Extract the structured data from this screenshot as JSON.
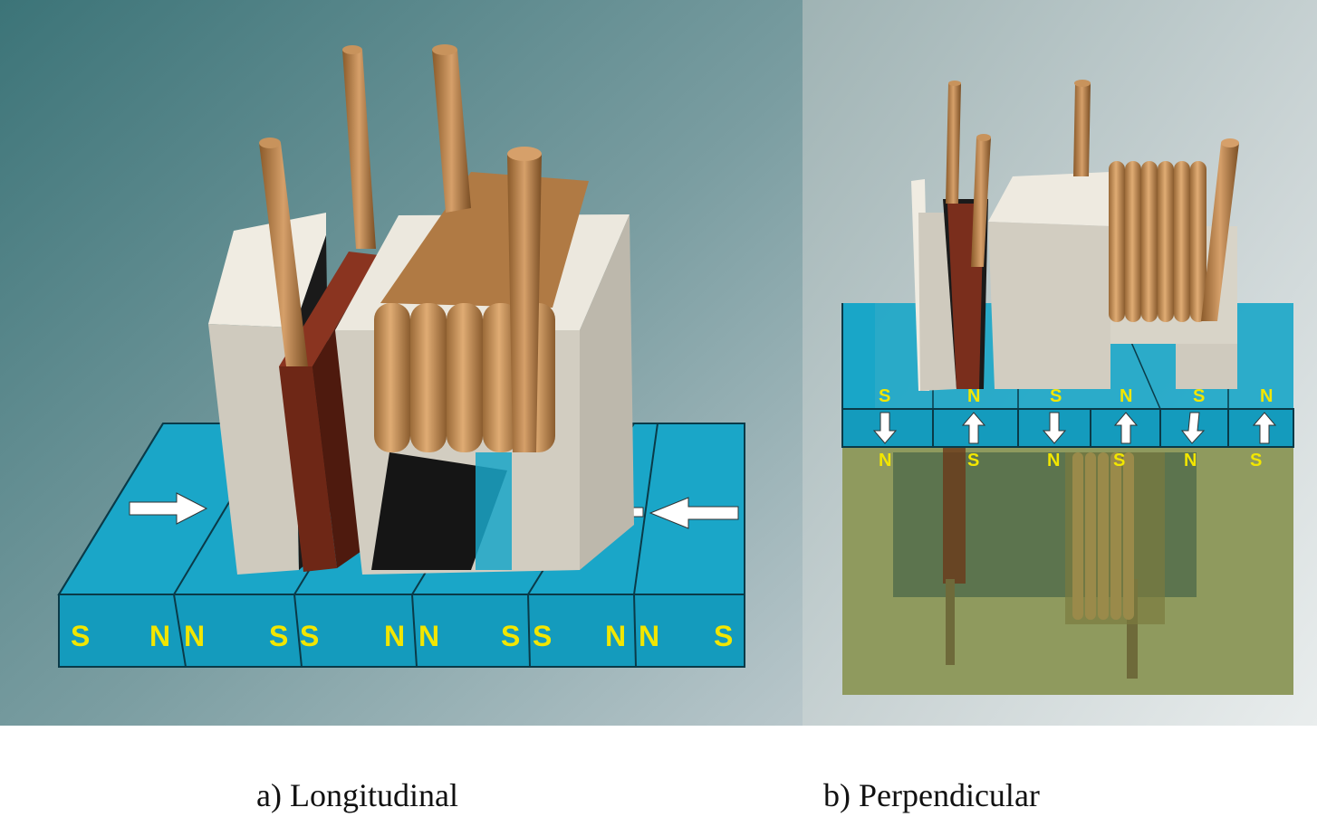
{
  "panels": [
    {
      "caption": "a) Longitudinal",
      "pole_labels": [
        "S",
        "N",
        "N",
        "S",
        "S",
        "N",
        "N",
        "S",
        "S",
        "N",
        "N",
        "S"
      ]
    },
    {
      "caption": "b) Perpendicular",
      "top_labels": [
        "S",
        "N",
        "S",
        "N",
        "S",
        "N"
      ],
      "bottom_labels": [
        "N",
        "S",
        "N",
        "S",
        "N",
        "S"
      ]
    }
  ],
  "colors": {
    "media": "#1aa6c8",
    "head_core": "#d6d2c8",
    "coil": "#c48a4e",
    "shield": "#7a2e1c",
    "soft_underlayer": "#8f9a5e",
    "label": "#f2e600"
  }
}
